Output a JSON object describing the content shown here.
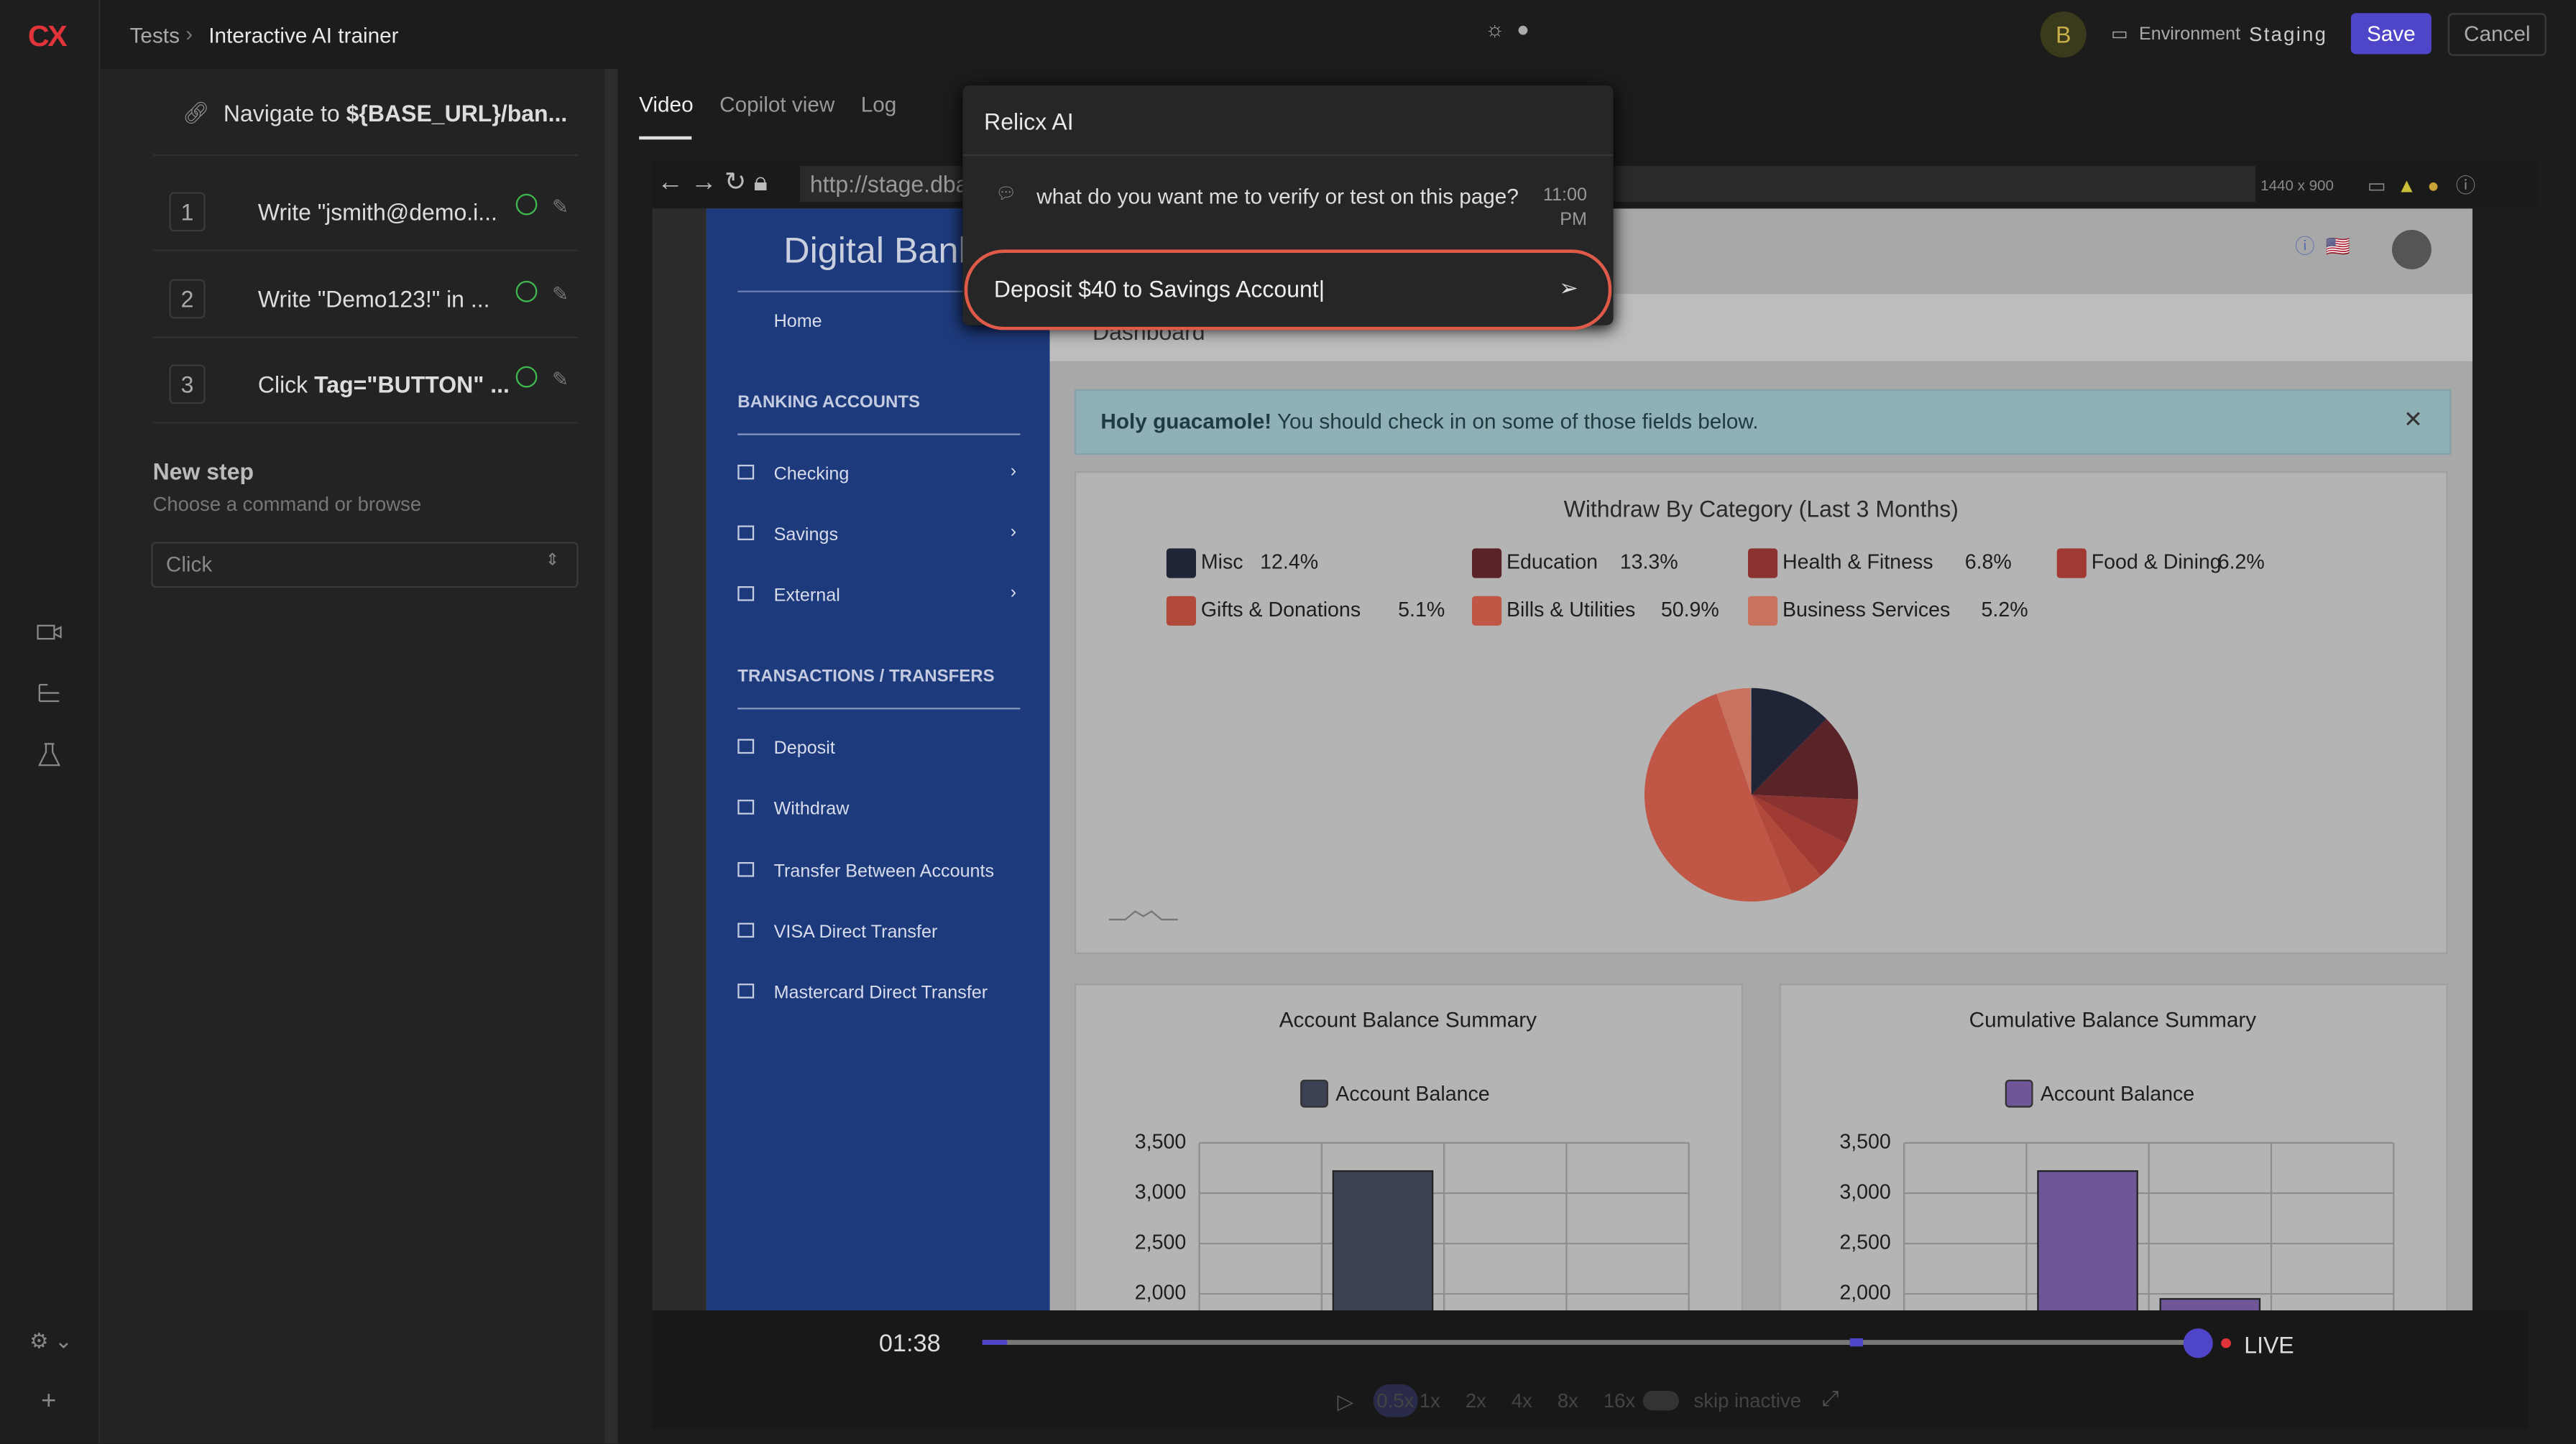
{
  "logo": "CX",
  "header": {
    "breadcrumb": [
      "Tests",
      "Interactive AI trainer"
    ],
    "avatar": "B",
    "environment_label": "Environment",
    "environment": "Staging",
    "save": "Save",
    "cancel": "Cancel"
  },
  "steps": {
    "navigate": {
      "prefix": "Navigate to",
      "target": "${BASE_URL}/ban..."
    },
    "items": [
      {
        "number": "1",
        "text": "Write \"jsmith@demo.i..."
      },
      {
        "number": "2",
        "text": "Write \"Demo123!\" in ..."
      },
      {
        "number": "3",
        "prefix": "Click",
        "text": "Tag=\"BUTTON\" ..."
      }
    ],
    "new_step": {
      "title": "New step",
      "hint": "Choose a command or browse",
      "select": "Click"
    }
  },
  "tabs": [
    "Video",
    "Copilot view",
    "Log"
  ],
  "browser": {
    "url": "http://stage.dba",
    "resolution": "1440 x 900"
  },
  "ai_panel": {
    "title": "Relicx AI",
    "message": "what do you want me to verify or test on this page?",
    "time": "11:00 PM",
    "input": "Deposit $40 to Savings Account"
  },
  "app": {
    "brand": "Digital Bank",
    "nav": {
      "home": "Home",
      "sections": [
        {
          "title": "BANKING ACCOUNTS",
          "items": [
            "Checking",
            "Savings",
            "External"
          ]
        },
        {
          "title": "TRANSACTIONS / TRANSFERS",
          "items": [
            "Deposit",
            "Withdraw",
            "Transfer Between Accounts",
            "VISA Direct Transfer",
            "Mastercard Direct Transfer"
          ]
        }
      ]
    },
    "page_title": "Dashboard",
    "alert": {
      "strong": "Holy guacamole!",
      "text": "You should check in on some of those fields below."
    },
    "pie": {
      "type": "pie",
      "title": "Withdraw By Category (Last 3 Months)",
      "categories": [
        "Misc",
        "Education",
        "Health & Fitness",
        "Food & Dining",
        "Gifts & Donations",
        "Bills & Utilities",
        "Business Services"
      ],
      "values": [
        12.4,
        13.3,
        6.8,
        6.2,
        5.1,
        50.9,
        5.2
      ],
      "value_labels": [
        "12.4%",
        "13.3%",
        "6.8%",
        "6.2%",
        "5.1%",
        "50.9%",
        "5.2%"
      ],
      "colors": [
        "#1f2436",
        "#5a2327",
        "#8b3330",
        "#a13a32",
        "#b24a3b",
        "#bf5646",
        "#c9735f"
      ]
    },
    "bars": [
      {
        "type": "bar",
        "title": "Account Balance Summary",
        "series": [
          {
            "name": "Account Balance",
            "color": "#3c4254",
            "values": [
              null,
              3220,
              null,
              null
            ]
          }
        ],
        "ylim": [
          0,
          3500
        ],
        "yticks": [
          {
            "value": 2000,
            "label": "2,000"
          },
          {
            "value": 2500,
            "label": "2,500"
          },
          {
            "value": 3000,
            "label": "3,000"
          },
          {
            "value": 3500,
            "label": "3,500"
          }
        ],
        "grid": true
      },
      {
        "type": "bar",
        "title": "Cumulative Balance Summary",
        "series": [
          {
            "name": "Account Balance",
            "color": "#6e5698",
            "values": [
              null,
              3220,
              1950,
              null
            ]
          }
        ],
        "ylim": [
          0,
          3500
        ],
        "yticks": [
          {
            "value": 2000,
            "label": "2,000"
          },
          {
            "value": 2500,
            "label": "2,500"
          },
          {
            "value": 3000,
            "label": "3,000"
          },
          {
            "value": 3500,
            "label": "3,500"
          }
        ],
        "grid": true
      }
    ]
  },
  "player": {
    "time": "01:38",
    "live": "LIVE",
    "speeds": [
      "0.5x",
      "1x",
      "2x",
      "4x",
      "8x",
      "16x"
    ],
    "skip": "skip inactive"
  }
}
